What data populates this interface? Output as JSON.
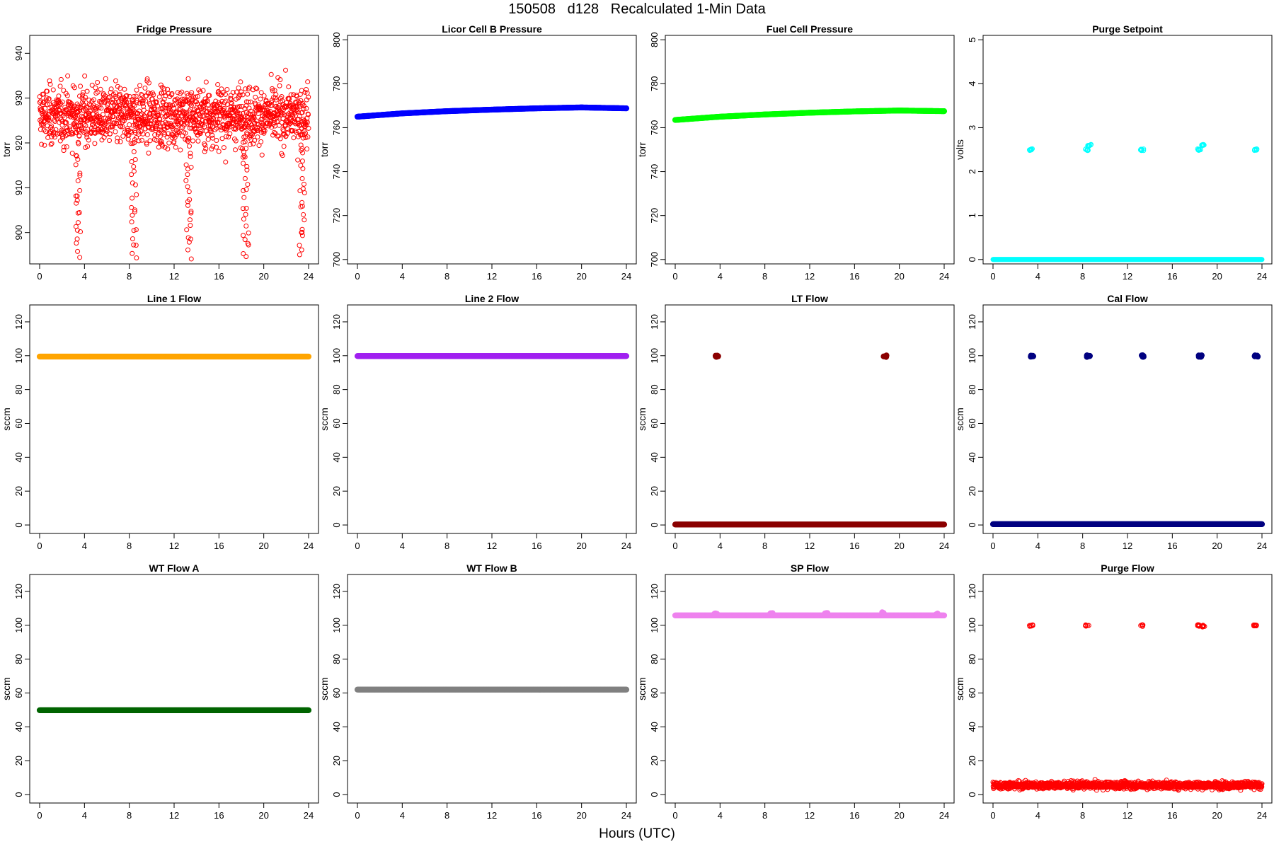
{
  "page": {
    "title": "150508   d128   Recalculated 1-Min Data",
    "xlabel": "Hours (UTC)"
  },
  "chart_data": [
    {
      "type": "scatter",
      "title": "Fridge Pressure",
      "ylabel": "torr",
      "color": "#ff0000",
      "marker": "open-circle",
      "xlim": [
        0,
        24
      ],
      "ylim": [
        893,
        944
      ],
      "yticks": [
        900,
        910,
        920,
        930,
        940
      ],
      "xticks": [
        0,
        4,
        8,
        12,
        16,
        20,
        24
      ],
      "series": [
        {
          "kind": "noise",
          "x": [
            0,
            24
          ],
          "center": 926,
          "spread": 5.5,
          "min": 913,
          "max": 943,
          "dips": [
            {
              "x": 3.4,
              "depth": 895
            },
            {
              "x": 8.4,
              "depth": 894
            },
            {
              "x": 13.3,
              "depth": 895
            },
            {
              "x": 18.4,
              "depth": 894
            },
            {
              "x": 23.4,
              "depth": 895
            }
          ]
        }
      ]
    },
    {
      "type": "scatter",
      "title": "Licor Cell B Pressure",
      "ylabel": "torr",
      "color": "#0000ff",
      "marker": "filled-circle",
      "xlim": [
        0,
        24
      ],
      "ylim": [
        698,
        802
      ],
      "yticks": [
        700,
        720,
        740,
        760,
        780,
        800
      ],
      "xticks": [
        0,
        4,
        8,
        12,
        16,
        20,
        24
      ],
      "series": [
        {
          "kind": "line",
          "x": [
            0,
            4,
            8,
            12,
            16,
            20,
            24
          ],
          "y": [
            765,
            766.5,
            767.5,
            768.2,
            768.8,
            769.2,
            768.8
          ]
        }
      ]
    },
    {
      "type": "scatter",
      "title": "Fuel Cell Pressure",
      "ylabel": "torr",
      "color": "#00ff00",
      "marker": "filled-circle",
      "xlim": [
        0,
        24
      ],
      "ylim": [
        698,
        802
      ],
      "yticks": [
        700,
        720,
        740,
        760,
        780,
        800
      ],
      "xticks": [
        0,
        4,
        8,
        12,
        16,
        20,
        24
      ],
      "series": [
        {
          "kind": "line",
          "x": [
            0,
            4,
            8,
            12,
            16,
            20,
            24
          ],
          "y": [
            763.5,
            765,
            766,
            766.8,
            767.4,
            767.8,
            767.5
          ]
        }
      ]
    },
    {
      "type": "scatter",
      "title": "Purge Setpoint",
      "ylabel": "volts",
      "color": "#00ffff",
      "marker": "open-circle",
      "xlim": [
        0,
        24
      ],
      "ylim": [
        -0.1,
        5.1
      ],
      "yticks": [
        0,
        1,
        2,
        3,
        4,
        5
      ],
      "xticks": [
        0,
        4,
        8,
        12,
        16,
        20,
        24
      ],
      "series": [
        {
          "kind": "line",
          "x": [
            0,
            24
          ],
          "y": [
            0,
            0
          ]
        },
        {
          "kind": "clusters",
          "points": [
            [
              3.4,
              2.5
            ],
            [
              8.4,
              2.5
            ],
            [
              8.6,
              2.6
            ],
            [
              13.3,
              2.5
            ],
            [
              18.4,
              2.5
            ],
            [
              18.7,
              2.6
            ],
            [
              23.4,
              2.5
            ]
          ]
        }
      ]
    },
    {
      "type": "scatter",
      "title": "Line 1 Flow",
      "ylabel": "sccm",
      "color": "#ffa500",
      "marker": "filled-circle",
      "xlim": [
        0,
        24
      ],
      "ylim": [
        -5,
        130
      ],
      "yticks": [
        0,
        20,
        40,
        60,
        80,
        100,
        120
      ],
      "xticks": [
        0,
        4,
        8,
        12,
        16,
        20,
        24
      ],
      "series": [
        {
          "kind": "line",
          "x": [
            0,
            24
          ],
          "y": [
            99.5,
            99.5
          ]
        }
      ]
    },
    {
      "type": "scatter",
      "title": "Line 2 Flow",
      "ylabel": "sccm",
      "color": "#a020f0",
      "marker": "filled-circle",
      "xlim": [
        0,
        24
      ],
      "ylim": [
        -5,
        130
      ],
      "yticks": [
        0,
        20,
        40,
        60,
        80,
        100,
        120
      ],
      "xticks": [
        0,
        4,
        8,
        12,
        16,
        20,
        24
      ],
      "series": [
        {
          "kind": "line",
          "x": [
            0,
            24
          ],
          "y": [
            99.8,
            99.8
          ]
        }
      ]
    },
    {
      "type": "scatter",
      "title": "LT Flow",
      "ylabel": "sccm",
      "color": "#8b0000",
      "marker": "filled-circle",
      "xlim": [
        0,
        24
      ],
      "ylim": [
        -5,
        130
      ],
      "yticks": [
        0,
        20,
        40,
        60,
        80,
        100,
        120
      ],
      "xticks": [
        0,
        4,
        8,
        12,
        16,
        20,
        24
      ],
      "series": [
        {
          "kind": "line",
          "x": [
            0,
            24
          ],
          "y": [
            0.3,
            0.3
          ]
        },
        {
          "kind": "clusters",
          "points": [
            [
              3.7,
              99.8
            ],
            [
              18.7,
              99.8
            ]
          ]
        }
      ]
    },
    {
      "type": "scatter",
      "title": "Cal Flow",
      "ylabel": "sccm",
      "color": "#000080",
      "marker": "filled-circle",
      "xlim": [
        0,
        24
      ],
      "ylim": [
        -5,
        130
      ],
      "yticks": [
        0,
        20,
        40,
        60,
        80,
        100,
        120
      ],
      "xticks": [
        0,
        4,
        8,
        12,
        16,
        20,
        24
      ],
      "series": [
        {
          "kind": "line",
          "x": [
            0,
            24
          ],
          "y": [
            0.5,
            0.5
          ]
        },
        {
          "kind": "clusters",
          "points": [
            [
              3.5,
              99.8
            ],
            [
              8.5,
              99.8
            ],
            [
              13.4,
              99.8
            ],
            [
              18.5,
              99.8
            ],
            [
              23.5,
              99.8
            ]
          ]
        }
      ]
    },
    {
      "type": "scatter",
      "title": "WT Flow A",
      "ylabel": "sccm",
      "color": "#006400",
      "marker": "filled-circle",
      "xlim": [
        0,
        24
      ],
      "ylim": [
        -5,
        130
      ],
      "yticks": [
        0,
        20,
        40,
        60,
        80,
        100,
        120
      ],
      "xticks": [
        0,
        4,
        8,
        12,
        16,
        20,
        24
      ],
      "series": [
        {
          "kind": "line",
          "x": [
            0,
            24
          ],
          "y": [
            49.8,
            49.8
          ]
        }
      ]
    },
    {
      "type": "scatter",
      "title": "WT Flow B",
      "ylabel": "sccm",
      "color": "#808080",
      "marker": "filled-circle",
      "xlim": [
        0,
        24
      ],
      "ylim": [
        -5,
        130
      ],
      "yticks": [
        0,
        20,
        40,
        60,
        80,
        100,
        120
      ],
      "xticks": [
        0,
        4,
        8,
        12,
        16,
        20,
        24
      ],
      "series": [
        {
          "kind": "line",
          "x": [
            0,
            24
          ],
          "y": [
            62,
            62
          ]
        }
      ]
    },
    {
      "type": "scatter",
      "title": "SP Flow",
      "ylabel": "sccm",
      "color": "#ee82ee",
      "marker": "filled-circle",
      "xlim": [
        0,
        24
      ],
      "ylim": [
        -5,
        130
      ],
      "yticks": [
        0,
        20,
        40,
        60,
        80,
        100,
        120
      ],
      "xticks": [
        0,
        4,
        8,
        12,
        16,
        20,
        24
      ],
      "series": [
        {
          "kind": "line",
          "x": [
            0,
            24
          ],
          "y": [
            105.8,
            105.8
          ]
        },
        {
          "kind": "clusters",
          "points": [
            [
              3.6,
              106.8
            ],
            [
              8.6,
              106.8
            ],
            [
              13.5,
              106.8
            ],
            [
              18.6,
              107.2
            ],
            [
              23.4,
              106.5
            ]
          ]
        }
      ]
    },
    {
      "type": "scatter",
      "title": "Purge Flow",
      "ylabel": "sccm",
      "color": "#ff0000",
      "marker": "open-circle",
      "xlim": [
        0,
        24
      ],
      "ylim": [
        -5,
        130
      ],
      "yticks": [
        0,
        20,
        40,
        60,
        80,
        100,
        120
      ],
      "xticks": [
        0,
        4,
        8,
        12,
        16,
        20,
        24
      ],
      "series": [
        {
          "kind": "noise",
          "x": [
            0,
            24
          ],
          "center": 5.5,
          "spread": 1.8,
          "min": 1,
          "max": 12,
          "dips": []
        },
        {
          "kind": "clusters",
          "points": [
            [
              3.4,
              99.8
            ],
            [
              8.4,
              99.8
            ],
            [
              13.3,
              99.8
            ],
            [
              18.4,
              99.8
            ],
            [
              18.8,
              99.5
            ],
            [
              23.4,
              99.8
            ]
          ]
        }
      ]
    }
  ]
}
